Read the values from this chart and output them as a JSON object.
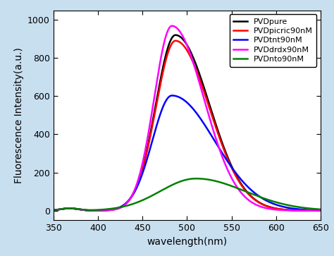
{
  "title": "",
  "xlabel": "wavelength(nm)",
  "ylabel": "Fluorescence Intensity(a.u.)",
  "xlim": [
    350,
    650
  ],
  "ylim": [
    -50,
    1050
  ],
  "xticks": [
    350,
    400,
    450,
    500,
    550,
    600,
    650
  ],
  "yticks": [
    0,
    200,
    400,
    600,
    800,
    1000
  ],
  "series": [
    {
      "label": "PVDpure",
      "color": "#000000",
      "peak": 487,
      "amplitude": 920,
      "sigma_l": 22,
      "sigma_r": 38,
      "lw": 1.8
    },
    {
      "label": "PVDpicric90nM",
      "color": "#ff0000",
      "peak": 487,
      "amplitude": 890,
      "sigma_l": 22,
      "sigma_r": 38,
      "lw": 1.8
    },
    {
      "label": "PVDtnt90nM",
      "color": "#0000ff",
      "peak": 483,
      "amplitude": 603,
      "sigma_l": 22,
      "sigma_r": 48,
      "lw": 1.8
    },
    {
      "label": "PVDdrdx90nM",
      "color": "#ff00ff",
      "peak": 483,
      "amplitude": 968,
      "sigma_l": 20,
      "sigma_r": 36,
      "lw": 1.8
    },
    {
      "label": "PVDnto90nM",
      "color": "#008000",
      "peak": 510,
      "amplitude": 168,
      "sigma_l": 40,
      "sigma_r": 55,
      "lw": 1.8
    }
  ],
  "legend_fontsize": 8,
  "legend_loc": "upper right",
  "axis_label_fontsize": 10,
  "tick_fontsize": 9,
  "outer_bg": "#c8dff0",
  "inner_bg": "#ffffff"
}
